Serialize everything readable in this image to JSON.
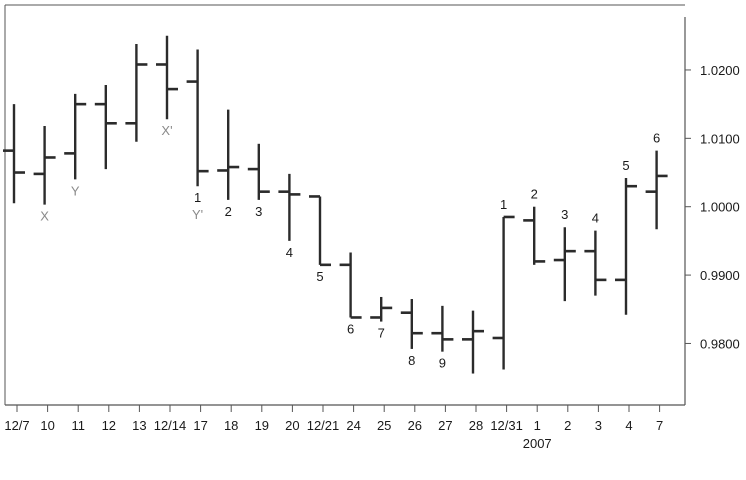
{
  "colors": {
    "background": "#ffffff",
    "frame": "#555555",
    "bars": "#2b2b2b",
    "label": "#1a1a1a",
    "pattern_label": "#8a8a8a"
  },
  "chart_data": {
    "type": "ohlc",
    "title": "",
    "xlabel": "",
    "ylabel": "",
    "y_axis_position": "right",
    "ylim": [
      0.971,
      1.0295
    ],
    "y_ticks": [
      {
        "value": 1.02,
        "label": "1.0200"
      },
      {
        "value": 1.01,
        "label": "1.0100"
      },
      {
        "value": 1.0,
        "label": "1.0000"
      },
      {
        "value": 0.99,
        "label": "0.9900"
      },
      {
        "value": 0.98,
        "label": "0.9800"
      }
    ],
    "x_categories": [
      "12/7",
      "10",
      "11",
      "12",
      "13",
      "12/14",
      "17",
      "18",
      "19",
      "20",
      "12/21",
      "24",
      "25",
      "26",
      "27",
      "28",
      "12/31",
      "1",
      "2",
      "3",
      "4",
      "7"
    ],
    "x_sublabel": {
      "category": "1",
      "text": "2007"
    },
    "grid": false,
    "legend": "none",
    "bars": [
      {
        "open": 1.0082,
        "high": 1.015,
        "low": 1.0005,
        "close": 1.005
      },
      {
        "open": 1.0048,
        "high": 1.0118,
        "low": 1.0003,
        "close": 1.0072
      },
      {
        "open": 1.0078,
        "high": 1.0165,
        "low": 1.004,
        "close": 1.015
      },
      {
        "open": 1.015,
        "high": 1.0178,
        "low": 1.0055,
        "close": 1.0122
      },
      {
        "open": 1.0122,
        "high": 1.0238,
        "low": 1.0095,
        "close": 1.0208
      },
      {
        "open": 1.0208,
        "high": 1.025,
        "low": 1.0128,
        "close": 1.0172
      },
      {
        "open": 1.0183,
        "high": 1.023,
        "low": 1.003,
        "close": 1.0052
      },
      {
        "open": 1.0053,
        "high": 1.0142,
        "low": 1.001,
        "close": 1.0058
      },
      {
        "open": 1.0055,
        "high": 1.0092,
        "low": 1.001,
        "close": 1.0022
      },
      {
        "open": 1.0022,
        "high": 1.0048,
        "low": 0.995,
        "close": 1.0018
      },
      {
        "open": 1.0015,
        "high": 1.0015,
        "low": 0.9915,
        "close": 0.9915
      },
      {
        "open": 0.9915,
        "high": 0.9933,
        "low": 0.9838,
        "close": 0.9838
      },
      {
        "open": 0.9838,
        "high": 0.9868,
        "low": 0.9832,
        "close": 0.9852
      },
      {
        "open": 0.9845,
        "high": 0.9865,
        "low": 0.9792,
        "close": 0.9815
      },
      {
        "open": 0.9815,
        "high": 0.9855,
        "low": 0.9788,
        "close": 0.9806
      },
      {
        "open": 0.9806,
        "high": 0.9848,
        "low": 0.9756,
        "close": 0.9818
      },
      {
        "open": 0.9808,
        "high": 0.9985,
        "low": 0.9762,
        "close": 0.9985
      },
      {
        "open": 0.998,
        "high": 1.0,
        "low": 0.9915,
        "close": 0.992
      },
      {
        "open": 0.9922,
        "high": 0.997,
        "low": 0.9862,
        "close": 0.9935
      },
      {
        "open": 0.9935,
        "high": 0.9965,
        "low": 0.987,
        "close": 0.9893
      },
      {
        "open": 0.9893,
        "high": 1.0042,
        "low": 0.9842,
        "close": 1.003
      },
      {
        "open": 1.0022,
        "high": 1.0082,
        "low": 0.9967,
        "close": 1.0045
      }
    ],
    "annotations": [
      {
        "text": "X",
        "bar": 1,
        "anchor": "below",
        "style": "pattern"
      },
      {
        "text": "Y",
        "bar": 2,
        "anchor": "below",
        "style": "pattern"
      },
      {
        "text": "X'",
        "bar": 5,
        "anchor": "below",
        "style": "pattern"
      },
      {
        "text": "1",
        "bar": 6,
        "anchor": "below",
        "style": "wave"
      },
      {
        "text": "Y'",
        "bar": 6,
        "anchor": "below2",
        "style": "pattern"
      },
      {
        "text": "2",
        "bar": 7,
        "anchor": "below",
        "style": "wave"
      },
      {
        "text": "3",
        "bar": 8,
        "anchor": "below",
        "style": "wave"
      },
      {
        "text": "4",
        "bar": 9,
        "anchor": "below",
        "style": "wave"
      },
      {
        "text": "5",
        "bar": 10,
        "anchor": "below",
        "style": "wave"
      },
      {
        "text": "6",
        "bar": 11,
        "anchor": "below",
        "style": "wave"
      },
      {
        "text": "7",
        "bar": 12,
        "anchor": "below",
        "style": "wave"
      },
      {
        "text": "8",
        "bar": 13,
        "anchor": "below",
        "style": "wave"
      },
      {
        "text": "9",
        "bar": 14,
        "anchor": "below",
        "style": "wave"
      },
      {
        "text": "1",
        "bar": 16,
        "anchor": "above",
        "style": "wave"
      },
      {
        "text": "2",
        "bar": 17,
        "anchor": "above",
        "style": "wave"
      },
      {
        "text": "3",
        "bar": 18,
        "anchor": "above",
        "style": "wave"
      },
      {
        "text": "4",
        "bar": 19,
        "anchor": "above",
        "style": "wave"
      },
      {
        "text": "5",
        "bar": 20,
        "anchor": "above",
        "style": "wave"
      },
      {
        "text": "6",
        "bar": 21,
        "anchor": "above",
        "style": "wave"
      }
    ]
  }
}
